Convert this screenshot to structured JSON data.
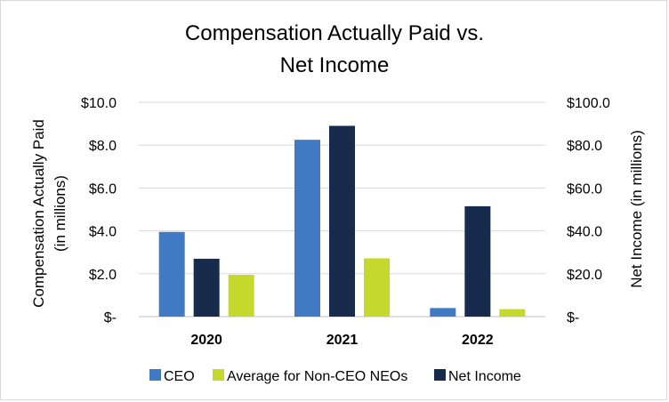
{
  "chart_data": {
    "type": "bar",
    "title_lines": [
      "Compensation Actually Paid vs.",
      "Net Income"
    ],
    "categories": [
      "2020",
      "2021",
      "2022"
    ],
    "series": [
      {
        "name": "CEO",
        "axis": "left",
        "color": "#3f7ac3",
        "values": [
          3.95,
          8.25,
          0.4
        ]
      },
      {
        "name": "Net Income",
        "axis": "right",
        "color": "#172c4d",
        "values": [
          27,
          89,
          51.5
        ]
      },
      {
        "name": "Average for Non-CEO NEOs",
        "axis": "right_of_left",
        "color": "#c5d82c",
        "values": [
          1.95,
          2.72,
          0.35
        ]
      }
    ],
    "left_axis": {
      "label_lines": [
        "Compensation Actually Paid",
        "(in millions)"
      ],
      "ylim": [
        0,
        10
      ],
      "ticks": [
        0,
        2,
        4,
        6,
        8,
        10
      ],
      "tick_labels": [
        "$-",
        "$2.0",
        "$4.0",
        "$6.0",
        "$8.0",
        "$10.0"
      ]
    },
    "right_axis": {
      "label": "Net Income (in millions)",
      "ylim": [
        0,
        100
      ],
      "ticks": [
        0,
        20,
        40,
        60,
        80,
        100
      ],
      "tick_labels": [
        "$-",
        "$20.0",
        "$40.0",
        "$60.0",
        "$80.0",
        "$100.0"
      ]
    },
    "legend_order": [
      "CEO",
      "Average for Non-CEO NEOs",
      "Net Income"
    ],
    "legend_position": "bottom",
    "grid": true
  }
}
